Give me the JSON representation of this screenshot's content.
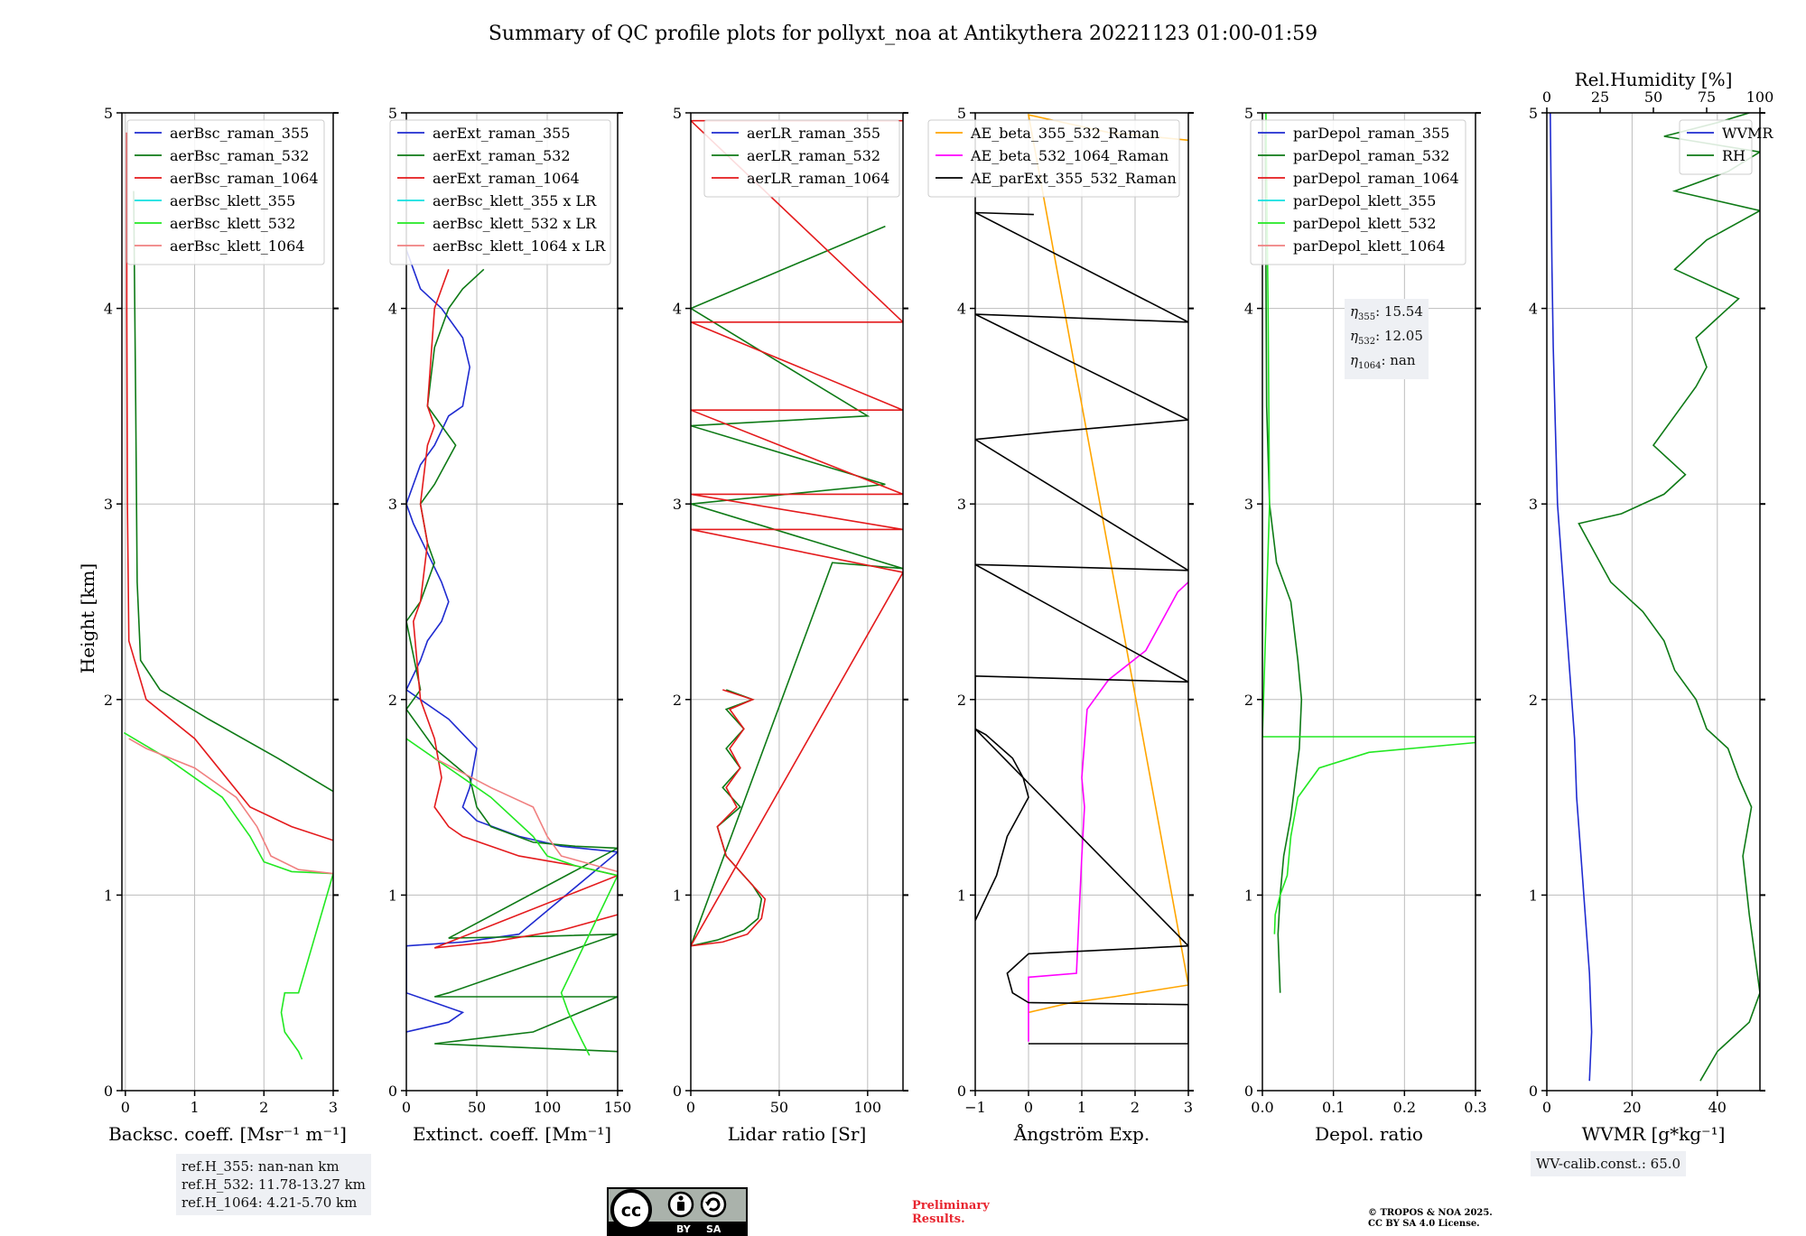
{
  "title": "Summary of QC profile plots for pollyxt_noa at Antikythera 20221123 01:00-01:59",
  "y_label": "Height [km]",
  "y_ticks": [
    "0",
    "1",
    "2",
    "3",
    "4",
    "5"
  ],
  "ref_heights": [
    "ref.H_355: nan-nan km",
    "ref.H_532: 11.78-13.27 km",
    "ref.H_1064: 4.21-5.70 km"
  ],
  "eta_lines": [
    {
      "sym": "η",
      "sub": "355",
      "value": ": 15.54"
    },
    {
      "sym": "η",
      "sub": "532",
      "value": ": 12.05"
    },
    {
      "sym": "η",
      "sub": "1064",
      "value": ": nan"
    }
  ],
  "wv_calib": "WV-calib.const.: 65.0",
  "preliminary": [
    "Preliminary",
    "Results."
  ],
  "copyright": [
    "© TROPOS & NOA 2025.",
    "CC BY SA 4.0 License."
  ],
  "license_badge": {
    "left": "BY",
    "right": "SA"
  },
  "chart_data": [
    {
      "type": "line",
      "xlabel": "Backsc. coeff. [Msr⁻¹ m⁻¹]",
      "ylabel": "Height [km]",
      "xlim": [
        -0.05,
        3
      ],
      "ylim": [
        0,
        5
      ],
      "grid": true,
      "legend": "top-right",
      "x_ticks": [
        "0",
        "1",
        "2",
        "3"
      ],
      "series": [
        {
          "name": "aerBsc_raman_355",
          "color": "#1f2bd0",
          "x": [],
          "y": []
        },
        {
          "name": "aerBsc_raman_532",
          "color": "#0e7a16",
          "x": [
            0.12,
            0.15,
            0.17,
            0.22,
            0.5,
            1.2,
            2.2,
            3.0
          ],
          "y": [
            4.6,
            3.5,
            2.6,
            2.2,
            2.05,
            1.9,
            1.7,
            1.53
          ]
        },
        {
          "name": "aerBsc_raman_1064",
          "color": "#e41a1c",
          "x": [
            0.02,
            0.02,
            0.03,
            0.05,
            0.3,
            1.0,
            1.8,
            2.4,
            3.0
          ],
          "y": [
            4.9,
            4.0,
            3.0,
            2.3,
            2.0,
            1.8,
            1.45,
            1.35,
            1.28
          ]
        },
        {
          "name": "aerBsc_klett_355",
          "color": "#12e0e0",
          "x": [],
          "y": []
        },
        {
          "name": "aerBsc_klett_532",
          "color": "#22e822",
          "x": [
            -0.02,
            0.6,
            1.4,
            1.8,
            2.0,
            2.4,
            3.0,
            2.5,
            2.3,
            2.25,
            2.3,
            2.5,
            2.55
          ],
          "y": [
            1.83,
            1.7,
            1.5,
            1.3,
            1.17,
            1.12,
            1.11,
            0.5,
            0.5,
            0.4,
            0.3,
            0.2,
            0.16
          ]
        },
        {
          "name": "aerBsc_klett_1064",
          "color": "#f08080",
          "x": [
            0.05,
            0.3,
            1.0,
            1.6,
            1.9,
            2.1,
            2.5,
            3.0
          ],
          "y": [
            1.8,
            1.75,
            1.65,
            1.5,
            1.35,
            1.2,
            1.13,
            1.11
          ]
        }
      ]
    },
    {
      "type": "line",
      "xlabel": "Extinct. coeff. [Mm⁻¹]",
      "xlim": [
        0,
        150
      ],
      "ylim": [
        0,
        5
      ],
      "grid": true,
      "legend": "top-right",
      "x_ticks": [
        "0",
        "50",
        "100",
        "150"
      ],
      "series": [
        {
          "name": "aerExt_raman_355",
          "color": "#1f2bd0",
          "x": [
            0,
            10,
            25,
            40,
            45,
            40,
            30,
            20,
            10,
            0,
            5,
            15,
            25,
            30,
            25,
            15,
            10,
            0,
            30,
            50,
            45,
            40,
            50,
            80,
            110,
            150,
            80,
            40,
            0,
            0,
            20,
            40,
            30,
            0
          ],
          "y": [
            4.3,
            4.1,
            4.0,
            3.85,
            3.7,
            3.5,
            3.45,
            3.3,
            3.2,
            3.0,
            2.9,
            2.75,
            2.6,
            2.5,
            2.4,
            2.3,
            2.2,
            2.05,
            1.9,
            1.75,
            1.55,
            1.45,
            1.38,
            1.3,
            1.25,
            1.22,
            0.8,
            0.76,
            0.74,
            0.5,
            0.45,
            0.4,
            0.35,
            0.3
          ]
        },
        {
          "name": "aerExt_raman_532",
          "color": "#0e7a16",
          "x": [
            55,
            40,
            30,
            20,
            15,
            25,
            35,
            20,
            10,
            15,
            20,
            15,
            10,
            0,
            10,
            5,
            0,
            10,
            20,
            45,
            50,
            60,
            90,
            120,
            150,
            30,
            100,
            150,
            30,
            20,
            150,
            90,
            20,
            150
          ],
          "y": [
            4.2,
            4.1,
            4.0,
            3.8,
            3.5,
            3.4,
            3.3,
            3.1,
            3.0,
            2.8,
            2.7,
            2.6,
            2.5,
            2.4,
            2.05,
            2.0,
            1.95,
            1.85,
            1.75,
            1.6,
            1.45,
            1.35,
            1.27,
            1.25,
            1.24,
            0.78,
            0.79,
            0.8,
            0.5,
            0.48,
            0.48,
            0.3,
            0.24,
            0.2
          ]
        },
        {
          "name": "aerExt_raman_1064",
          "color": "#e41a1c",
          "x": [
            30,
            25,
            20,
            15,
            20,
            15,
            10,
            15,
            10,
            5,
            10,
            20,
            25,
            20,
            30,
            40,
            80,
            120,
            150,
            20,
            60,
            110,
            150
          ],
          "y": [
            4.2,
            4.1,
            4.0,
            3.5,
            3.4,
            3.3,
            3.0,
            2.8,
            2.5,
            2.4,
            2.0,
            1.8,
            1.6,
            1.45,
            1.35,
            1.3,
            1.2,
            1.15,
            1.1,
            0.73,
            0.76,
            0.82,
            0.9
          ]
        },
        {
          "name": "aerBsc_klett_355 x LR",
          "color": "#12e0e0",
          "x": [],
          "y": []
        },
        {
          "name": "aerBsc_klett_532 x LR",
          "color": "#22e822",
          "x": [
            0,
            30,
            60,
            90,
            100,
            120,
            150,
            110,
            115,
            125,
            130
          ],
          "y": [
            1.8,
            1.65,
            1.5,
            1.3,
            1.2,
            1.15,
            1.1,
            0.5,
            0.4,
            0.25,
            0.18
          ]
        },
        {
          "name": "aerBsc_klett_1064 x LR",
          "color": "#f08080",
          "x": [
            20,
            60,
            90,
            100,
            110,
            150
          ],
          "y": [
            1.7,
            1.55,
            1.45,
            1.3,
            1.2,
            1.12
          ]
        }
      ]
    },
    {
      "type": "line",
      "xlabel": "Lidar ratio [Sr]",
      "xlim": [
        0,
        120
      ],
      "ylim": [
        0,
        5
      ],
      "grid": true,
      "legend": "top-right",
      "x_ticks": [
        "0",
        "50",
        "100"
      ],
      "series": [
        {
          "name": "aerLR_raman_355",
          "color": "#1f2bd0",
          "x": [],
          "y": []
        },
        {
          "name": "aerLR_raman_532",
          "color": "#0e7a16",
          "x": [
            20,
            35,
            20,
            30,
            20,
            28,
            18,
            28,
            15,
            20,
            35,
            40,
            38,
            30,
            15,
            0,
            80,
            120,
            0,
            110,
            0,
            100,
            0,
            110
          ],
          "y": [
            2.05,
            2.0,
            1.95,
            1.85,
            1.75,
            1.65,
            1.55,
            1.45,
            1.35,
            1.2,
            1.05,
            0.98,
            0.88,
            0.82,
            0.77,
            0.74,
            2.7,
            2.67,
            3.0,
            3.1,
            3.4,
            3.45,
            4.0,
            4.42
          ]
        },
        {
          "name": "aerLR_raman_1064",
          "color": "#e41a1c",
          "x": [
            18,
            35,
            22,
            30,
            22,
            28,
            20,
            26,
            15,
            20,
            35,
            42,
            40,
            32,
            18,
            0,
            120,
            0,
            120,
            0,
            120,
            0,
            120,
            0,
            120,
            0,
            120
          ],
          "y": [
            2.05,
            2.0,
            1.95,
            1.85,
            1.75,
            1.65,
            1.55,
            1.45,
            1.35,
            1.2,
            1.05,
            0.98,
            0.88,
            0.8,
            0.76,
            0.74,
            2.65,
            2.87,
            2.87,
            3.05,
            3.05,
            3.48,
            3.48,
            3.93,
            3.93,
            4.96,
            4.96
          ]
        }
      ]
    },
    {
      "type": "line",
      "xlabel": "Ångström Exp.",
      "xlim": [
        -1,
        3
      ],
      "ylim": [
        0,
        5
      ],
      "grid": true,
      "legend": "top-right",
      "x_ticks": [
        "−1",
        "0",
        "1",
        "2",
        "3"
      ],
      "series": [
        {
          "name": "AE_beta_355_532_Raman",
          "color": "#ffa500",
          "x": [
            0,
            0.8,
            1.6,
            2.3,
            3.0,
            0,
            1.5,
            3.0
          ],
          "y": [
            0.4,
            0.45,
            0.48,
            0.51,
            0.54,
            4.99,
            4.9,
            4.86
          ]
        },
        {
          "name": "AE_beta_532_1064_Raman",
          "color": "#ff00ff",
          "x": [
            0,
            0,
            0.9,
            0.95,
            1.0,
            1.05,
            1.0,
            1.1,
            1.5,
            2.2,
            2.5,
            2.8,
            3.0
          ],
          "y": [
            0.25,
            0.58,
            0.6,
            0.9,
            1.2,
            1.45,
            1.6,
            1.95,
            2.1,
            2.25,
            2.4,
            2.55,
            2.6
          ]
        },
        {
          "name": "AE_parExt_355_532_Raman",
          "color": "#000000",
          "x": [
            0,
            3.0,
            3.0,
            0.0,
            -0.3,
            -0.4,
            0.0,
            3.0,
            -1.0,
            -0.8,
            -0.3,
            -0.1,
            0.0,
            -0.2,
            -0.4,
            -0.6,
            -1.0,
            -1.0,
            3.0,
            -1.0,
            3.0,
            -1.0,
            0.5,
            3.0,
            -1.0,
            3.0,
            -1.0,
            0.1
          ],
          "y": [
            0.24,
            0.24,
            0.44,
            0.45,
            0.5,
            0.6,
            0.7,
            0.74,
            1.85,
            1.82,
            1.7,
            1.6,
            1.5,
            1.4,
            1.3,
            1.1,
            0.87,
            2.12,
            2.09,
            2.69,
            2.66,
            3.33,
            3.37,
            3.43,
            3.97,
            3.93,
            4.49,
            4.48
          ]
        }
      ]
    },
    {
      "type": "line",
      "xlabel": "Depol. ratio",
      "xlim": [
        0,
        0.3
      ],
      "ylim": [
        0,
        5
      ],
      "grid": true,
      "legend": "top-right",
      "x_ticks": [
        "0.0",
        "0.1",
        "0.2",
        "0.3"
      ],
      "series": [
        {
          "name": "parDepol_raman_355",
          "color": "#1f2bd0",
          "x": [],
          "y": []
        },
        {
          "name": "parDepol_raman_532",
          "color": "#0e7a16",
          "x": [
            0.004,
            0.006,
            0.01,
            0.02,
            0.04,
            0.05,
            0.055,
            0.052,
            0.04,
            0.03,
            0.025,
            0.022,
            0.025
          ],
          "y": [
            4.9,
            3.5,
            3.0,
            2.7,
            2.5,
            2.2,
            2.0,
            1.75,
            1.4,
            1.2,
            1.0,
            0.8,
            0.5
          ]
        },
        {
          "name": "parDepol_raman_1064",
          "color": "#e41a1c",
          "x": [],
          "y": []
        },
        {
          "name": "parDepol_klett_355",
          "color": "#12e0e0",
          "x": [],
          "y": []
        },
        {
          "name": "parDepol_klett_532",
          "color": "#22e822",
          "x": [
            0.005,
            0.008,
            0.01,
            0.0,
            0.3,
            0.3,
            0.15,
            0.08,
            0.05,
            0.04,
            0.035,
            0.025,
            0.018,
            0.017
          ],
          "y": [
            5.0,
            4.0,
            3.0,
            1.81,
            1.81,
            1.78,
            1.73,
            1.65,
            1.5,
            1.3,
            1.1,
            1.0,
            0.9,
            0.8
          ]
        },
        {
          "name": "parDepol_klett_1064",
          "color": "#f08080",
          "x": [],
          "y": []
        }
      ]
    },
    {
      "type": "line",
      "xlabel": "WVMR [g*kg⁻¹]",
      "xlim": [
        0,
        50
      ],
      "ylim": [
        0,
        5
      ],
      "grid": true,
      "legend": "top-right",
      "x_ticks": [
        "0",
        "20",
        "40"
      ],
      "top_axis_label": "Rel.Humidity [%]",
      "top_xlim": [
        0,
        100
      ],
      "top_ticks": [
        "0",
        "25",
        "50",
        "75",
        "100"
      ],
      "series": [
        {
          "name": "WVMR",
          "color": "#1f2bd0",
          "axis": "bottom",
          "x": [
            10.0,
            10.5,
            10.0,
            9.0,
            8.0,
            7.0,
            6.5,
            5.5,
            4.5,
            3.5,
            2.5,
            2.0,
            1.5,
            1.2,
            1.0,
            0.8
          ],
          "y": [
            0.05,
            0.3,
            0.6,
            0.9,
            1.2,
            1.5,
            1.8,
            2.1,
            2.4,
            2.7,
            3.0,
            3.4,
            3.8,
            4.2,
            4.6,
            5.0
          ]
        },
        {
          "name": "RH",
          "color": "#0e7a16",
          "axis": "top",
          "x": [
            72,
            80,
            95,
            100,
            95,
            92,
            96,
            90,
            85,
            75,
            70,
            60,
            55,
            45,
            30,
            15,
            35,
            55,
            65,
            50,
            60,
            70,
            75,
            70,
            80,
            90,
            60,
            75,
            100,
            60,
            85,
            100,
            55,
            80,
            95
          ],
          "y": [
            0.05,
            0.2,
            0.35,
            0.5,
            0.9,
            1.2,
            1.45,
            1.6,
            1.75,
            1.85,
            2.0,
            2.15,
            2.3,
            2.45,
            2.6,
            2.9,
            2.95,
            3.05,
            3.15,
            3.3,
            3.45,
            3.6,
            3.7,
            3.85,
            3.95,
            4.05,
            4.2,
            4.35,
            4.5,
            4.6,
            4.7,
            4.8,
            4.88,
            4.95,
            5.0
          ]
        }
      ]
    }
  ]
}
